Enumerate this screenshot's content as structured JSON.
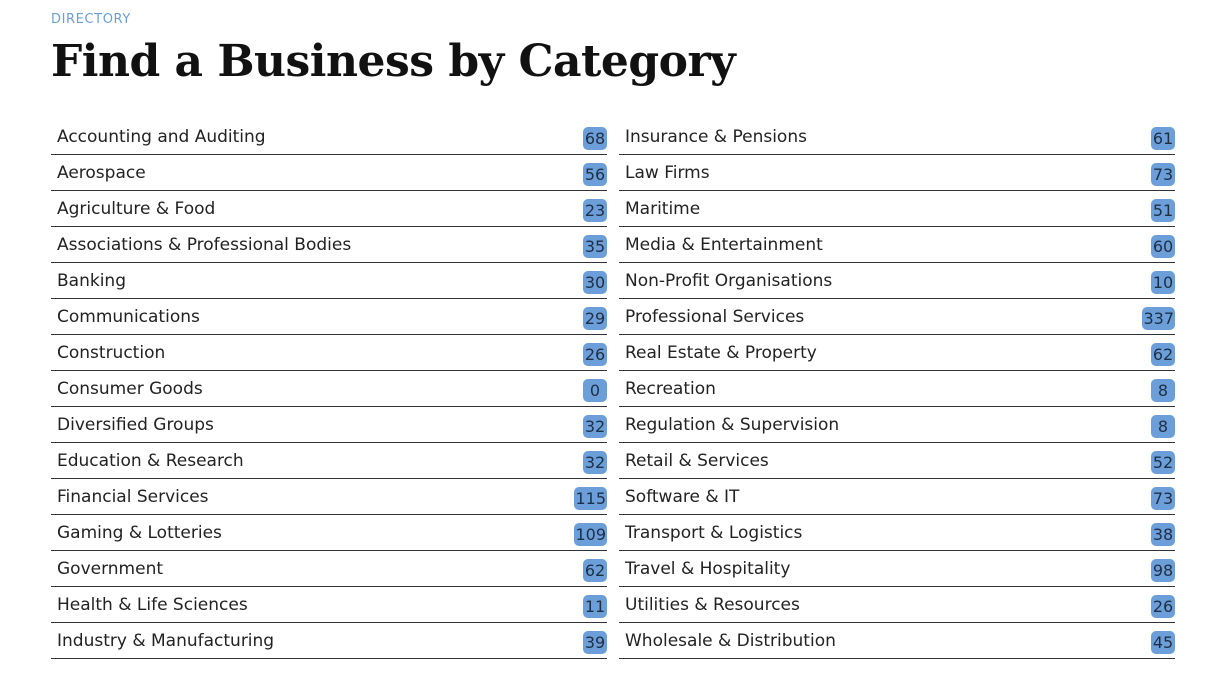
{
  "header": {
    "eyebrow": "DIRECTORY",
    "title": "Find a Business by Category"
  },
  "colors": {
    "accent": "#6a9fd6",
    "badge": "#6c9fd9",
    "divider": "#333333"
  },
  "categories": {
    "left": [
      {
        "label": "Accounting and Auditing",
        "count": "68"
      },
      {
        "label": "Aerospace",
        "count": "56"
      },
      {
        "label": "Agriculture & Food",
        "count": "23"
      },
      {
        "label": "Associations & Professional Bodies",
        "count": "35"
      },
      {
        "label": "Banking",
        "count": "30"
      },
      {
        "label": "Communications",
        "count": "29"
      },
      {
        "label": "Construction",
        "count": "26"
      },
      {
        "label": "Consumer Goods",
        "count": "0"
      },
      {
        "label": "Diversified Groups",
        "count": "32"
      },
      {
        "label": "Education & Research",
        "count": "32"
      },
      {
        "label": "Financial Services",
        "count": "115"
      },
      {
        "label": "Gaming & Lotteries",
        "count": "109"
      },
      {
        "label": "Government",
        "count": "62"
      },
      {
        "label": "Health & Life Sciences",
        "count": "11"
      },
      {
        "label": "Industry & Manufacturing",
        "count": "39"
      }
    ],
    "right": [
      {
        "label": "Insurance & Pensions",
        "count": "61"
      },
      {
        "label": "Law Firms",
        "count": "73"
      },
      {
        "label": "Maritime",
        "count": "51"
      },
      {
        "label": "Media & Entertainment",
        "count": "60"
      },
      {
        "label": "Non-Profit Organisations",
        "count": "10"
      },
      {
        "label": "Professional Services",
        "count": "337"
      },
      {
        "label": "Real Estate & Property",
        "count": "62"
      },
      {
        "label": "Recreation",
        "count": "8"
      },
      {
        "label": "Regulation & Supervision",
        "count": "8"
      },
      {
        "label": "Retail & Services",
        "count": "52"
      },
      {
        "label": "Software & IT",
        "count": "73"
      },
      {
        "label": "Transport & Logistics",
        "count": "38"
      },
      {
        "label": "Travel & Hospitality",
        "count": "98"
      },
      {
        "label": "Utilities & Resources",
        "count": "26"
      },
      {
        "label": "Wholesale & Distribution",
        "count": "45"
      }
    ]
  }
}
